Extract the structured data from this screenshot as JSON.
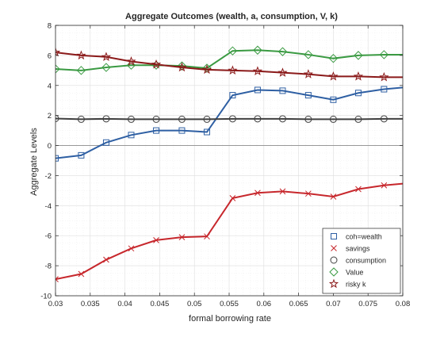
{
  "chart_data": {
    "type": "line",
    "title": "Aggregate Outcomes (wealth, a, consumption, V, k)",
    "xlabel": "formal borrowing rate",
    "ylabel": "Aggregate Levels",
    "xlim": [
      0.03,
      0.08
    ],
    "ylim": [
      -10,
      8
    ],
    "grid": true,
    "minor_grid": true,
    "legend_position": "bottom-right",
    "xticks": [
      "0.03",
      "0.035",
      "0.04",
      "0.045",
      "0.05",
      "0.055",
      "0.06",
      "0.065",
      "0.07",
      "0.075",
      "0.08"
    ],
    "yticks": [
      "-10",
      "-8",
      "-6",
      "-4",
      "-2",
      "0",
      "2",
      "4",
      "6",
      "8"
    ],
    "x": [
      0.03,
      0.0337,
      0.0373,
      0.0409,
      0.0445,
      0.0482,
      0.0518,
      0.0555,
      0.0591,
      0.0627,
      0.0664,
      0.07,
      0.0736,
      0.0773,
      0.0809
    ],
    "series": [
      {
        "name": "coh=wealth",
        "marker": "square",
        "color": "#2e5fa3",
        "values": [
          -0.85,
          -0.65,
          0.2,
          0.7,
          1.0,
          1.0,
          0.9,
          3.35,
          3.7,
          3.65,
          3.35,
          3.05,
          3.5,
          3.75,
          3.9
        ]
      },
      {
        "name": "savings",
        "marker": "x",
        "color": "#c7272c",
        "values": [
          -8.9,
          -8.55,
          -7.6,
          -6.85,
          -6.3,
          -6.1,
          -6.05,
          -3.5,
          -3.15,
          -3.05,
          -3.2,
          -3.4,
          -2.9,
          -2.65,
          -2.5
        ]
      },
      {
        "name": "consumption",
        "marker": "circle",
        "color": "#404040",
        "values": [
          1.8,
          1.75,
          1.78,
          1.75,
          1.75,
          1.75,
          1.75,
          1.78,
          1.78,
          1.78,
          1.75,
          1.75,
          1.75,
          1.78,
          1.78
        ]
      },
      {
        "name": "Value",
        "marker": "diamond",
        "color": "#3a9a42",
        "values": [
          5.1,
          5.0,
          5.2,
          5.35,
          5.35,
          5.3,
          5.15,
          6.3,
          6.35,
          6.25,
          6.05,
          5.8,
          6.0,
          6.05,
          6.05
        ]
      },
      {
        "name": "risky k",
        "marker": "star",
        "color": "#8b1a1a",
        "values": [
          6.2,
          6.0,
          5.9,
          5.6,
          5.4,
          5.2,
          5.05,
          5.0,
          4.95,
          4.85,
          4.75,
          4.6,
          4.6,
          4.55,
          4.55
        ]
      }
    ]
  }
}
